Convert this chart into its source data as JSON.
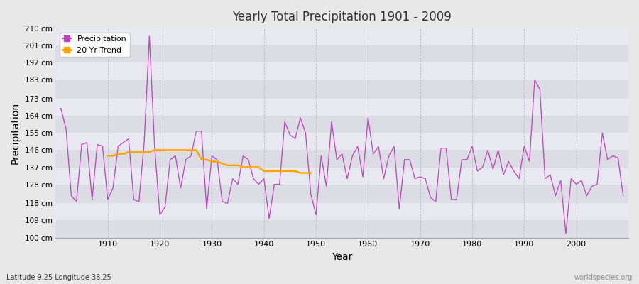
{
  "title": "Yearly Total Precipitation 1901 - 2009",
  "xlabel": "Year",
  "ylabel": "Precipitation",
  "subtitle": "Latitude 9.25 Longitude 38.25",
  "watermark": "worldspecies.org",
  "precipitation_color": "#bb44bb",
  "trend_color": "#FFA500",
  "bg_color": "#e8e8e8",
  "plot_bg_color": "#e8e8e8",
  "band_colors": [
    "#dcdce4",
    "#e8e8f0"
  ],
  "ylim": [
    100,
    210
  ],
  "yticks": [
    100,
    109,
    118,
    128,
    137,
    146,
    155,
    164,
    173,
    183,
    192,
    201,
    210
  ],
  "xlim_min": 1900,
  "xlim_max": 2010,
  "xticks": [
    1910,
    1920,
    1930,
    1940,
    1950,
    1960,
    1970,
    1980,
    1990,
    2000
  ],
  "years": [
    1901,
    1902,
    1903,
    1904,
    1905,
    1906,
    1907,
    1908,
    1909,
    1910,
    1911,
    1912,
    1913,
    1914,
    1915,
    1916,
    1917,
    1918,
    1919,
    1920,
    1921,
    1922,
    1923,
    1924,
    1925,
    1926,
    1927,
    1928,
    1929,
    1930,
    1931,
    1932,
    1933,
    1934,
    1935,
    1936,
    1937,
    1938,
    1939,
    1940,
    1941,
    1942,
    1943,
    1944,
    1945,
    1946,
    1947,
    1948,
    1949,
    1950,
    1951,
    1952,
    1953,
    1954,
    1955,
    1956,
    1957,
    1958,
    1959,
    1960,
    1961,
    1962,
    1963,
    1964,
    1965,
    1966,
    1967,
    1968,
    1969,
    1970,
    1971,
    1972,
    1973,
    1974,
    1975,
    1976,
    1977,
    1978,
    1979,
    1980,
    1981,
    1982,
    1983,
    1984,
    1985,
    1986,
    1987,
    1988,
    1989,
    1990,
    1991,
    1992,
    1993,
    1994,
    1995,
    1996,
    1997,
    1998,
    1999,
    2000,
    2001,
    2002,
    2003,
    2004,
    2005,
    2006,
    2007,
    2008,
    2009
  ],
  "precipitation": [
    168,
    157,
    122,
    119,
    149,
    150,
    120,
    149,
    148,
    120,
    126,
    148,
    150,
    152,
    120,
    119,
    150,
    206,
    148,
    112,
    116,
    141,
    143,
    126,
    141,
    143,
    156,
    156,
    115,
    143,
    141,
    119,
    118,
    131,
    128,
    143,
    141,
    131,
    128,
    131,
    110,
    128,
    128,
    161,
    154,
    152,
    163,
    155,
    123,
    112,
    143,
    127,
    161,
    141,
    144,
    131,
    143,
    148,
    132,
    163,
    144,
    148,
    131,
    143,
    148,
    115,
    141,
    141,
    131,
    132,
    131,
    121,
    119,
    147,
    147,
    120,
    120,
    141,
    141,
    148,
    135,
    137,
    146,
    136,
    146,
    133,
    140,
    135,
    131,
    148,
    140,
    183,
    178,
    131,
    133,
    122,
    130,
    102,
    131,
    128,
    130,
    122,
    127,
    128,
    155,
    141,
    143,
    142,
    122
  ],
  "trend_years": [
    1910,
    1911,
    1912,
    1913,
    1914,
    1915,
    1916,
    1917,
    1918,
    1919,
    1920,
    1921,
    1922,
    1923,
    1924,
    1925,
    1926,
    1927,
    1928,
    1929,
    1930,
    1931,
    1932,
    1933,
    1934,
    1935,
    1936,
    1937,
    1938,
    1939,
    1940,
    1941,
    1942,
    1943,
    1944,
    1945,
    1946,
    1947,
    1948,
    1949
  ],
  "trend": [
    143,
    143,
    144,
    144,
    145,
    145,
    145,
    145,
    145,
    146,
    146,
    146,
    146,
    146,
    146,
    146,
    146,
    146,
    141,
    141,
    140,
    140,
    139,
    138,
    138,
    138,
    137,
    137,
    137,
    137,
    135,
    135,
    135,
    135,
    135,
    135,
    135,
    134,
    134,
    134
  ]
}
